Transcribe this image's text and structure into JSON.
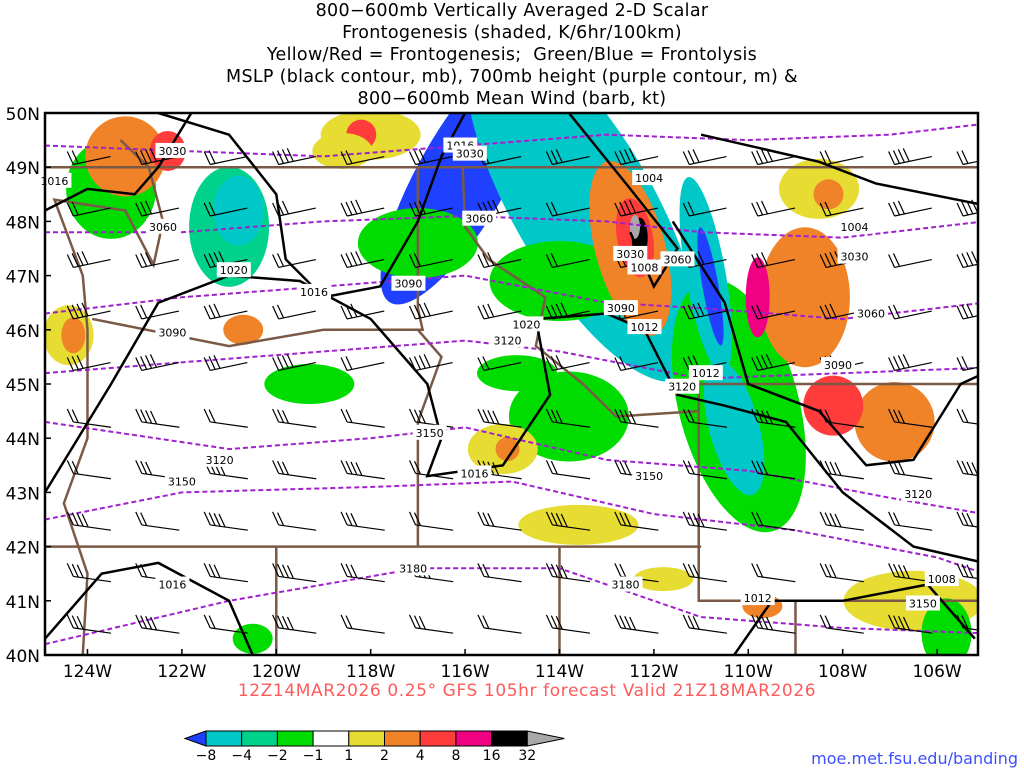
{
  "title_lines": [
    "800−600mb Vertically Averaged 2-D Scalar",
    "Frontogenesis (shaded, K/6hr/100km)",
    "Yellow/Red = Frontogenesis;  Green/Blue = Frontolysis",
    "MSLP (black contour, mb), 700mb height (purple contour, m) &",
    "800−600mb Mean Wind (barb, kt)"
  ],
  "lat_labels": [
    "50N",
    "49N",
    "48N",
    "47N",
    "46N",
    "45N",
    "44N",
    "43N",
    "42N",
    "41N",
    "40N"
  ],
  "lon_labels": [
    "124W",
    "122W",
    "120W",
    "118W",
    "116W",
    "114W",
    "112W",
    "110W",
    "108W",
    "106W"
  ],
  "contour_labels": [
    {
      "text": "3030",
      "lon": -122.2,
      "lat": 49.3
    },
    {
      "text": "1016",
      "lon": -124.7,
      "lat": 48.75
    },
    {
      "text": "3060",
      "lon": -122.4,
      "lat": 47.9
    },
    {
      "text": "1016",
      "lon": -116.1,
      "lat": 49.4
    },
    {
      "text": "3030",
      "lon": -115.9,
      "lat": 49.25
    },
    {
      "text": "3060",
      "lon": -115.7,
      "lat": 48.05
    },
    {
      "text": "1004",
      "lon": -112.1,
      "lat": 48.8
    },
    {
      "text": "1004",
      "lon": -107.75,
      "lat": 47.9
    },
    {
      "text": "3030",
      "lon": -107.75,
      "lat": 47.35
    },
    {
      "text": "1020",
      "lon": -120.9,
      "lat": 47.1
    },
    {
      "text": "1016",
      "lon": -119.2,
      "lat": 46.7
    },
    {
      "text": "3090",
      "lon": -117.2,
      "lat": 46.85
    },
    {
      "text": "3030",
      "lon": -112.5,
      "lat": 47.4
    },
    {
      "text": "1008",
      "lon": -112.2,
      "lat": 47.15
    },
    {
      "text": "3060",
      "lon": -111.5,
      "lat": 47.3
    },
    {
      "text": "3090",
      "lon": -112.7,
      "lat": 46.4
    },
    {
      "text": "1012",
      "lon": -112.2,
      "lat": 46.05
    },
    {
      "text": "1020",
      "lon": -114.7,
      "lat": 46.1
    },
    {
      "text": "3090",
      "lon": -122.2,
      "lat": 45.95
    },
    {
      "text": "3120",
      "lon": -115.1,
      "lat": 45.8
    },
    {
      "text": "3060",
      "lon": -107.4,
      "lat": 46.3
    },
    {
      "text": "1012",
      "lon": -110.9,
      "lat": 45.2
    },
    {
      "text": "3090",
      "lon": -108.1,
      "lat": 45.35
    },
    {
      "text": "3120",
      "lon": -111.4,
      "lat": 44.95
    },
    {
      "text": "3120",
      "lon": -121.2,
      "lat": 43.6
    },
    {
      "text": "3150",
      "lon": -116.75,
      "lat": 44.1
    },
    {
      "text": "1016",
      "lon": -115.8,
      "lat": 43.35
    },
    {
      "text": "3150",
      "lon": -112.1,
      "lat": 43.3
    },
    {
      "text": "3120",
      "lon": -106.4,
      "lat": 42.97
    },
    {
      "text": "3150",
      "lon": -122.0,
      "lat": 43.2
    },
    {
      "text": "3180",
      "lon": -117.1,
      "lat": 41.6
    },
    {
      "text": "1016",
      "lon": -122.2,
      "lat": 41.3
    },
    {
      "text": "3180",
      "lon": -112.6,
      "lat": 41.3
    },
    {
      "text": "1008",
      "lon": -105.9,
      "lat": 41.4
    },
    {
      "text": "1012",
      "lon": -109.8,
      "lat": 41.05
    },
    {
      "text": "3150",
      "lon": -106.3,
      "lat": 40.95
    }
  ],
  "footer": "12Z14MAR2026 0.25° GFS 105hr forecast Valid 21Z18MAR2026",
  "colorbar": {
    "colors": [
      "#2040ff",
      "#00c8c8",
      "#00d28c",
      "#00dc00",
      "#ffffff",
      "#e6dc32",
      "#f08228",
      "#ff3c3c",
      "#f00082",
      "#000000",
      "#a8a8a8"
    ],
    "ticks": [
      "−8",
      "−4",
      "−2",
      "−1",
      "1",
      "2",
      "4",
      "8",
      "16",
      "32"
    ]
  },
  "credit": "moe.met.fsu.edu/banding"
}
